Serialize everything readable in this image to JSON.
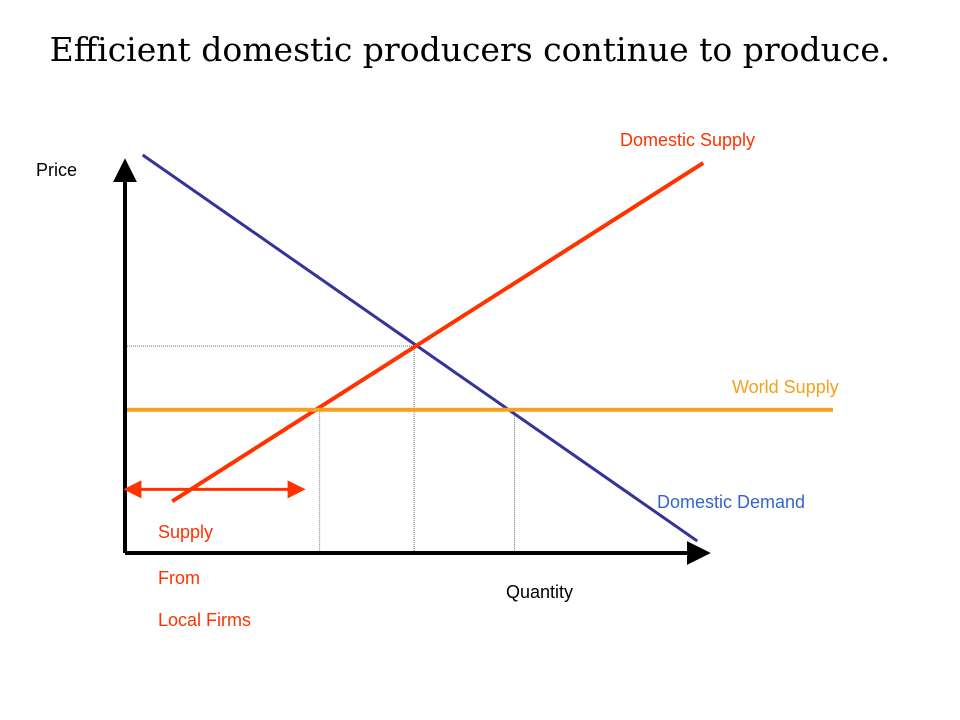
{
  "title": "Efficient domestic producers continue to produce.",
  "colors": {
    "demand": "#333399",
    "domestic_supply": "#ff3300",
    "world_supply": "#f5a01e",
    "demand_label": "#3366cc",
    "axis": "#000000",
    "guide": "#555555"
  },
  "chart_data": {
    "type": "line",
    "title": "Efficient domestic producers continue to produce.",
    "xlabel": "Quantity",
    "ylabel": "Price",
    "xlim": [
      0,
      100
    ],
    "ylim": [
      0,
      100
    ],
    "grid": false,
    "series": [
      {
        "name": "Domestic Demand",
        "x": [
          3,
          97
        ],
        "y": [
          100,
          3
        ],
        "color": "#333399"
      },
      {
        "name": "Domestic Supply",
        "x": [
          8,
          98
        ],
        "y": [
          13,
          98
        ],
        "color": "#ff3300"
      },
      {
        "name": "World Supply",
        "x": [
          0,
          120
        ],
        "y": [
          36,
          36
        ],
        "color": "#f5a01e"
      }
    ],
    "guides": {
      "equilibrium": {
        "x": 49,
        "y": 52
      },
      "domestic_supply_at_world_price": {
        "x": 33,
        "y": 36
      },
      "demand_at_world_price": {
        "x": 66,
        "y": 36
      }
    },
    "annotation": {
      "arrow_from_x": 0,
      "arrow_to_x": 30,
      "arrow_y": 16,
      "lines": [
        "Supply",
        "From",
        "Local Firms"
      ]
    }
  }
}
